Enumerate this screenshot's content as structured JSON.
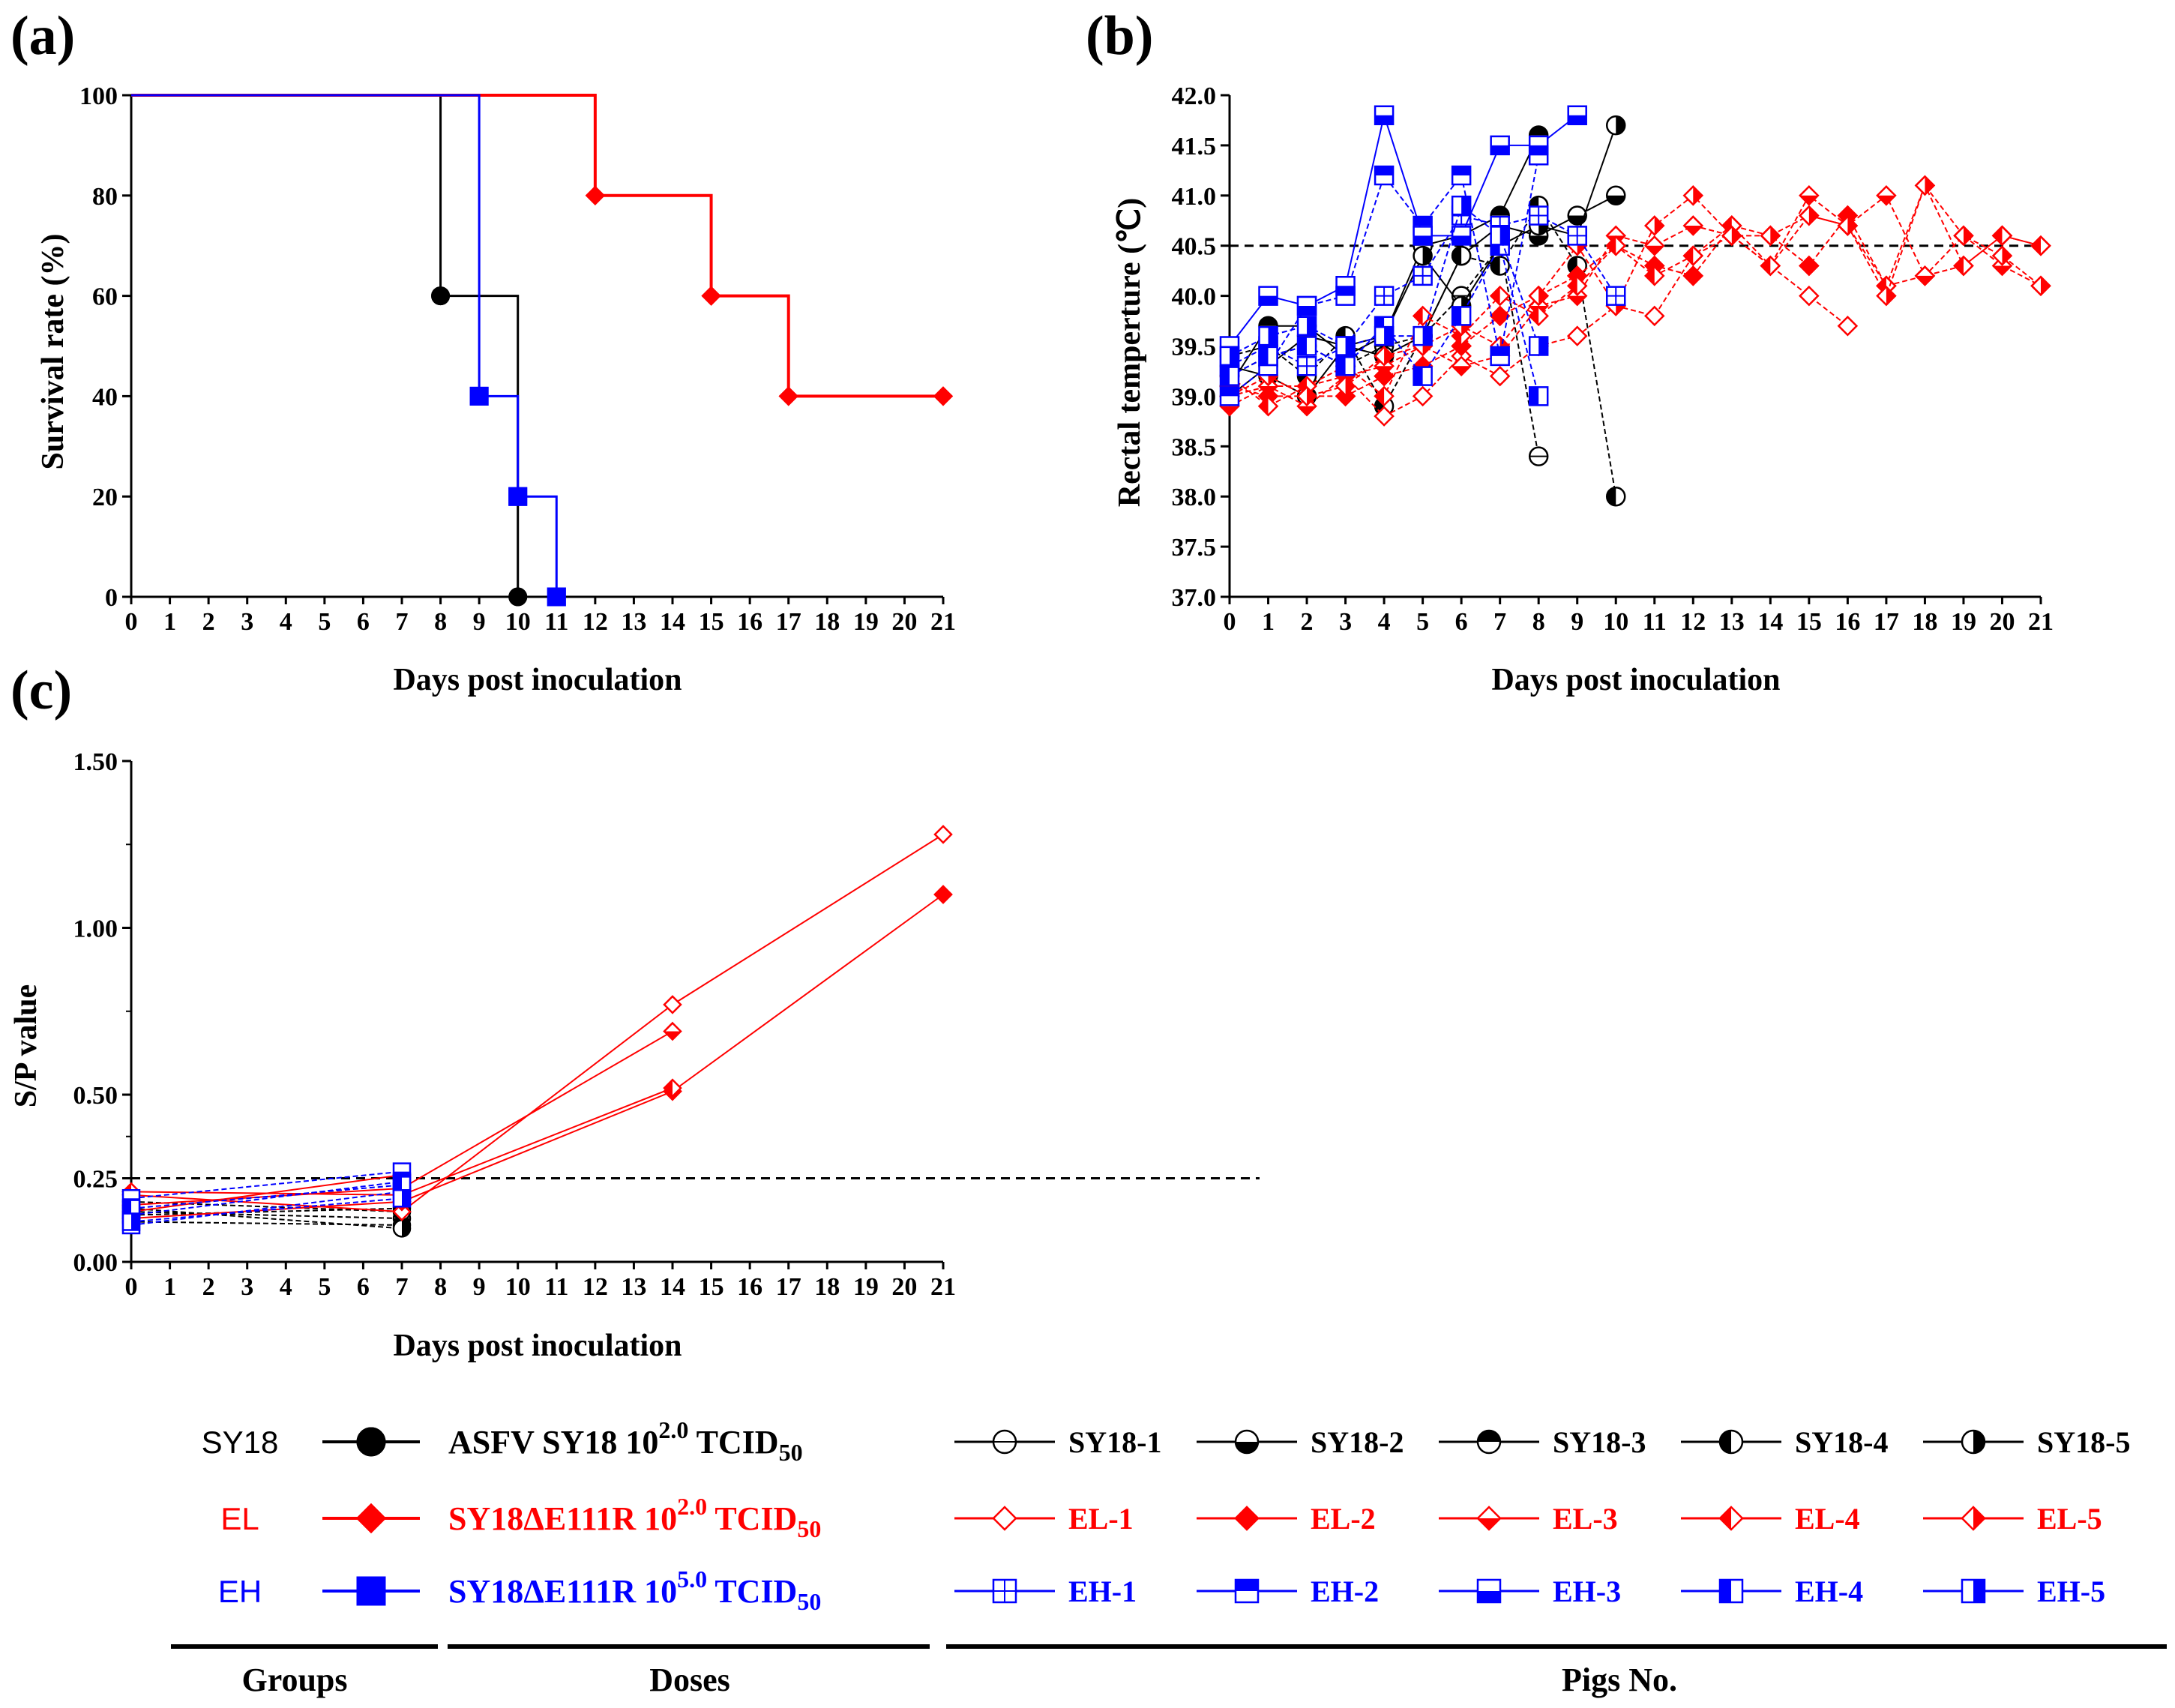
{
  "colors": {
    "SY18": "#000000",
    "EL": "#ff0000",
    "EH": "#0000ff"
  },
  "chart_data": [
    {
      "panel": "(a)",
      "type": "line",
      "subtype": "survival-step",
      "title": "",
      "xlabel": "Days post inoculation",
      "ylabel": "Survival rate (%)",
      "xlim": [
        0,
        21
      ],
      "ylim": [
        0,
        100
      ],
      "xticks": [
        "0",
        "1",
        "2",
        "3",
        "4",
        "5",
        "6",
        "7",
        "8",
        "9",
        "10",
        "11",
        "12",
        "13",
        "14",
        "15",
        "16",
        "17",
        "18",
        "19",
        "20",
        "21"
      ],
      "yticks": [
        "0",
        "20",
        "40",
        "60",
        "80",
        "100"
      ],
      "series": [
        {
          "name": "SY18",
          "color": "#000000",
          "marker": "circle",
          "x": [
            0,
            8,
            10
          ],
          "y": [
            100,
            60,
            0
          ]
        },
        {
          "name": "EL",
          "color": "#ff0000",
          "marker": "diamond",
          "x": [
            0,
            12,
            15,
            17,
            21
          ],
          "y": [
            100,
            80,
            60,
            40,
            40
          ]
        },
        {
          "name": "EH",
          "color": "#0000ff",
          "marker": "square",
          "x": [
            0,
            9,
            10,
            11
          ],
          "y": [
            100,
            40,
            20,
            0
          ]
        }
      ]
    },
    {
      "panel": "(b)",
      "type": "line",
      "title": "",
      "xlabel": "Days post inoculation",
      "ylabel": "Rectal temperture (℃)",
      "xlim": [
        0,
        21
      ],
      "ylim": [
        37.0,
        42.0
      ],
      "threshold": 40.5,
      "xticks": [
        "0",
        "1",
        "2",
        "3",
        "4",
        "5",
        "6",
        "7",
        "8",
        "9",
        "10",
        "11",
        "12",
        "13",
        "14",
        "15",
        "16",
        "17",
        "18",
        "19",
        "20",
        "21"
      ],
      "yticks": [
        "37.0",
        "37.5",
        "38.0",
        "38.5",
        "39.0",
        "39.5",
        "40.0",
        "40.5",
        "41.0",
        "41.5",
        "42.0"
      ],
      "series": [
        {
          "name": "SY18-1",
          "group": "SY18",
          "fill": "open",
          "dashed": true,
          "x": [
            0,
            1,
            2,
            3,
            4,
            5,
            6,
            7,
            8
          ],
          "y": [
            39.2,
            39.4,
            39.5,
            39.3,
            39.5,
            39.6,
            40.0,
            40.5,
            38.4
          ]
        },
        {
          "name": "SY18-2",
          "group": "SY18",
          "fill": "bottom",
          "dashed": false,
          "x": [
            0,
            1,
            2,
            3,
            4,
            5,
            6,
            7,
            8,
            9,
            10
          ],
          "y": [
            39.0,
            39.3,
            39.6,
            39.5,
            39.4,
            39.6,
            40.4,
            40.7,
            40.6,
            40.8,
            41.0
          ]
        },
        {
          "name": "SY18-3",
          "group": "SY18",
          "fill": "top",
          "dashed": false,
          "x": [
            0,
            1,
            2,
            3,
            4,
            5,
            6,
            7,
            8
          ],
          "y": [
            39.1,
            39.7,
            39.7,
            39.4,
            39.6,
            40.5,
            40.6,
            40.8,
            41.6
          ]
        },
        {
          "name": "SY18-4",
          "group": "SY18",
          "fill": "left",
          "dashed": true,
          "x": [
            0,
            1,
            2,
            3,
            4,
            5,
            6,
            7,
            8,
            9,
            10
          ],
          "y": [
            39.4,
            39.5,
            39.2,
            39.6,
            38.9,
            39.6,
            40.4,
            40.3,
            40.9,
            40.3,
            38.0
          ]
        },
        {
          "name": "SY18-5",
          "group": "SY18",
          "fill": "right",
          "dashed": false,
          "x": [
            0,
            1,
            2,
            3,
            4,
            5,
            6,
            7,
            8,
            9,
            10
          ],
          "y": [
            39.3,
            39.2,
            39.0,
            39.5,
            39.6,
            40.4,
            39.9,
            40.5,
            40.7,
            40.6,
            41.7
          ]
        },
        {
          "name": "EL-1",
          "group": "EL",
          "fill": "open",
          "dashed": true,
          "x": [
            0,
            1,
            2,
            3,
            4,
            5,
            6,
            7,
            8,
            9,
            10,
            11,
            12,
            13,
            14,
            15,
            16
          ],
          "y": [
            39.0,
            39.1,
            39.1,
            39.2,
            38.8,
            39.0,
            39.4,
            39.2,
            39.5,
            39.6,
            39.9,
            39.8,
            40.4,
            40.6,
            40.3,
            40.0,
            39.7
          ]
        },
        {
          "name": "EL-2",
          "group": "EL",
          "fill": "full",
          "dashed": true,
          "x": [
            0,
            1,
            2,
            3,
            4,
            5,
            6,
            7,
            8,
            9,
            10,
            11,
            12,
            13,
            14,
            15,
            16,
            17,
            18,
            19,
            20,
            21
          ],
          "y": [
            39.1,
            39.0,
            39.0,
            39.0,
            39.2,
            39.3,
            39.5,
            39.8,
            40.0,
            40.2,
            40.5,
            40.3,
            40.2,
            40.7,
            40.6,
            40.3,
            40.8,
            40.1,
            40.2,
            40.3,
            40.6,
            40.5
          ]
        },
        {
          "name": "EL-3",
          "group": "EL",
          "fill": "bottom",
          "dashed": true,
          "x": [
            0,
            1,
            2,
            3,
            4,
            5,
            6,
            7,
            8,
            9,
            10,
            11,
            12,
            13,
            14,
            15,
            16,
            17,
            18,
            19,
            20,
            21
          ],
          "y": [
            38.9,
            39.1,
            38.9,
            39.2,
            39.3,
            39.5,
            39.3,
            39.4,
            39.9,
            40.0,
            40.6,
            40.5,
            40.7,
            40.6,
            40.3,
            41.0,
            40.7,
            41.0,
            40.2,
            40.6,
            40.3,
            40.1
          ]
        },
        {
          "name": "EL-4",
          "group": "EL",
          "fill": "left",
          "dashed": true,
          "x": [
            0,
            1,
            2,
            3,
            4,
            5,
            6,
            7,
            8,
            9,
            10,
            11,
            12,
            13,
            14,
            15,
            16,
            17,
            18,
            19,
            20,
            21
          ],
          "y": [
            39.2,
            38.9,
            39.1,
            39.3,
            39.0,
            39.8,
            39.6,
            40.0,
            39.8,
            40.1,
            40.5,
            40.2,
            40.4,
            40.7,
            40.3,
            40.8,
            40.7,
            40.1,
            41.1,
            40.3,
            40.6,
            40.5
          ]
        },
        {
          "name": "EL-5",
          "group": "EL",
          "fill": "right",
          "dashed": true,
          "x": [
            0,
            1,
            2,
            3,
            4,
            5,
            6,
            7,
            8,
            9,
            10,
            11,
            12,
            13,
            14,
            15,
            16,
            17,
            18,
            19,
            20,
            21
          ],
          "y": [
            39.0,
            39.2,
            39.0,
            39.1,
            39.4,
            39.5,
            39.7,
            39.5,
            40.0,
            40.5,
            39.9,
            40.7,
            41.0,
            40.6,
            40.6,
            40.8,
            40.7,
            40.0,
            41.1,
            40.6,
            40.4,
            40.1
          ]
        },
        {
          "name": "EH-1",
          "group": "EH",
          "fill": "open-cross",
          "dashed": true,
          "x": [
            0,
            1,
            2,
            3,
            4,
            5,
            6,
            7,
            8,
            9,
            10
          ],
          "y": [
            39.3,
            39.5,
            39.3,
            39.5,
            40.0,
            40.2,
            40.8,
            40.7,
            40.8,
            40.6,
            40.0
          ]
        },
        {
          "name": "EH-2",
          "group": "EH",
          "fill": "top",
          "dashed": true,
          "x": [
            0,
            1,
            2,
            3,
            4,
            5,
            6,
            7,
            8
          ],
          "y": [
            39.0,
            39.3,
            39.9,
            40.0,
            41.2,
            40.7,
            41.2,
            39.4,
            41.4
          ]
        },
        {
          "name": "EH-3",
          "group": "EH",
          "fill": "bottom",
          "dashed": false,
          "x": [
            0,
            1,
            2,
            3,
            4,
            5,
            6,
            7,
            8,
            9
          ],
          "y": [
            39.5,
            40.0,
            39.9,
            40.1,
            41.8,
            40.6,
            40.6,
            41.5,
            41.5,
            41.8
          ]
        },
        {
          "name": "EH-4",
          "group": "EH",
          "fill": "left",
          "dashed": true,
          "x": [
            0,
            1,
            2,
            3,
            4,
            5,
            6,
            7,
            8
          ],
          "y": [
            39.2,
            39.4,
            39.5,
            39.3,
            39.7,
            39.2,
            39.8,
            40.5,
            39.0
          ]
        },
        {
          "name": "EH-5",
          "group": "EH",
          "fill": "right",
          "dashed": true,
          "x": [
            0,
            1,
            2,
            3,
            4,
            5,
            6,
            7,
            8
          ],
          "y": [
            39.4,
            39.6,
            39.7,
            39.5,
            39.6,
            39.6,
            40.9,
            40.6,
            39.5
          ]
        }
      ]
    },
    {
      "panel": "(c)",
      "type": "line",
      "title": "",
      "xlabel": "Days post inoculation",
      "ylabel": "S/P value",
      "xlim": [
        0,
        21
      ],
      "ylim": [
        0,
        1.5
      ],
      "threshold": 0.25,
      "xticks": [
        "0",
        "1",
        "2",
        "3",
        "4",
        "5",
        "6",
        "7",
        "8",
        "9",
        "10",
        "11",
        "12",
        "13",
        "14",
        "15",
        "16",
        "17",
        "18",
        "19",
        "20",
        "21"
      ],
      "yticks": [
        "0.00",
        "0.25",
        "0.50",
        "1.00",
        "1.50"
      ],
      "series": [
        {
          "name": "SY18-1",
          "group": "SY18",
          "fill": "open",
          "x": [
            0,
            7
          ],
          "y": [
            0.12,
            0.11
          ]
        },
        {
          "name": "SY18-2",
          "group": "SY18",
          "fill": "bottom",
          "x": [
            0,
            7
          ],
          "y": [
            0.15,
            0.13
          ]
        },
        {
          "name": "SY18-3",
          "group": "SY18",
          "fill": "top",
          "x": [
            0,
            7
          ],
          "y": [
            0.14,
            0.16
          ]
        },
        {
          "name": "SY18-4",
          "group": "SY18",
          "fill": "left",
          "x": [
            0,
            7
          ],
          "y": [
            0.18,
            0.15
          ]
        },
        {
          "name": "SY18-5",
          "group": "SY18",
          "fill": "right",
          "x": [
            0,
            7
          ],
          "y": [
            0.16,
            0.1
          ]
        },
        {
          "name": "EL-1",
          "group": "EL",
          "fill": "open",
          "x": [
            0,
            7,
            14,
            21
          ],
          "y": [
            0.2,
            0.15,
            0.77,
            1.28
          ]
        },
        {
          "name": "EL-2",
          "group": "EL",
          "fill": "full",
          "x": [
            0,
            7,
            14,
            21
          ],
          "y": [
            0.13,
            0.18,
            0.51,
            1.1
          ]
        },
        {
          "name": "EL-3",
          "group": "EL",
          "fill": "bottom",
          "x": [
            0,
            7,
            14
          ],
          "y": [
            0.17,
            0.22,
            0.69
          ]
        },
        {
          "name": "EL-4",
          "group": "EL",
          "fill": "left",
          "x": [
            0,
            7,
            14
          ],
          "y": [
            0.21,
            0.2,
            0.52
          ]
        },
        {
          "name": "EL-5",
          "group": "EL",
          "fill": "right",
          "x": [
            0,
            7
          ],
          "y": [
            0.15,
            0.26
          ]
        },
        {
          "name": "EH-1",
          "group": "EH",
          "fill": "open-cross",
          "x": [
            0,
            7
          ],
          "y": [
            0.14,
            0.24
          ]
        },
        {
          "name": "EH-2",
          "group": "EH",
          "fill": "top",
          "x": [
            0,
            7
          ],
          "y": [
            0.11,
            0.21
          ]
        },
        {
          "name": "EH-3",
          "group": "EH",
          "fill": "bottom",
          "x": [
            0,
            7
          ],
          "y": [
            0.19,
            0.27
          ]
        },
        {
          "name": "EH-4",
          "group": "EH",
          "fill": "left",
          "x": [
            0,
            7
          ],
          "y": [
            0.16,
            0.23
          ]
        },
        {
          "name": "EH-5",
          "group": "EH",
          "fill": "right",
          "x": [
            0,
            7
          ],
          "y": [
            0.12,
            0.19
          ]
        }
      ]
    }
  ],
  "legend": {
    "headers": {
      "groups": "Groups",
      "doses": "Doses",
      "pigs": "Pigs No."
    },
    "rows": [
      {
        "group": "SY18",
        "marker": "circle",
        "dose_text": "ASFV SY18 10",
        "dose_exp": "2.0",
        "dose_unit": " TCID",
        "dose_sub": "50",
        "pigs": [
          "SY18-1",
          "SY18-2",
          "SY18-3",
          "SY18-4",
          "SY18-5"
        ]
      },
      {
        "group": "EL",
        "marker": "diamond",
        "dose_text": "SY18ΔE111R 10",
        "dose_exp": "2.0",
        "dose_unit": " TCID",
        "dose_sub": "50",
        "pigs": [
          "EL-1",
          "EL-2",
          "EL-3",
          "EL-4",
          "EL-5"
        ]
      },
      {
        "group": "EH",
        "marker": "square",
        "dose_text": "SY18ΔE111R 10",
        "dose_exp": "5.0",
        "dose_unit": " TCID",
        "dose_sub": "50",
        "pigs": [
          "EH-1",
          "EH-2",
          "EH-3",
          "EH-4",
          "EH-5"
        ]
      }
    ]
  }
}
